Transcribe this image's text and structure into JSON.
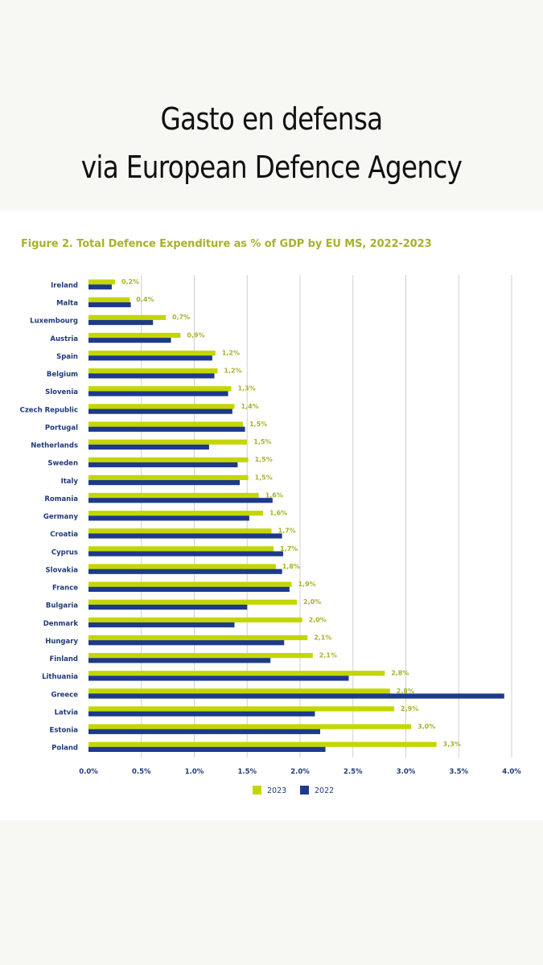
{
  "post": {
    "title_line1": "Gasto en defensa",
    "title_line2": "via European Defence Agency"
  },
  "colors": {
    "background": "#f7f7f3",
    "panel": "#ffffff",
    "series_2023": "#c3d600",
    "series_2022": "#1d3a8a",
    "label_2023": "#a7b22a",
    "category_text": "#1f3a7a",
    "grid": "#d0d0d0"
  },
  "chart_data": {
    "type": "bar",
    "orientation": "horizontal",
    "title": "Figure 2. Total Defence Expenditure as % of GDP by EU MS, 2022-2023",
    "xlabel": "",
    "ylabel": "",
    "xlim": [
      0,
      4.0
    ],
    "x_ticks": [
      "0.0%",
      "0.5%",
      "1.0%",
      "1.5%",
      "2.0%",
      "2.5%",
      "3.0%",
      "3.5%",
      "4.0%"
    ],
    "grid": "vertical",
    "legend_position": "bottom",
    "categories": [
      "Ireland",
      "Malta",
      "Luxembourg",
      "Austria",
      "Spain",
      "Belgium",
      "Slovenia",
      "Czech Republic",
      "Portugal",
      "Netherlands",
      "Sweden",
      "Italy",
      "Romania",
      "Germany",
      "Croatia",
      "Cyprus",
      "Slovakia",
      "France",
      "Bulgaria",
      "Denmark",
      "Hungary",
      "Finland",
      "Lithuania",
      "Greece",
      "Latvia",
      "Estonia",
      "Poland"
    ],
    "series": [
      {
        "name": "2023",
        "values": [
          0.25,
          0.39,
          0.73,
          0.87,
          1.2,
          1.22,
          1.35,
          1.38,
          1.46,
          1.5,
          1.51,
          1.51,
          1.61,
          1.65,
          1.73,
          1.75,
          1.77,
          1.92,
          1.97,
          2.02,
          2.07,
          2.12,
          2.8,
          2.85,
          2.89,
          3.05,
          3.29
        ],
        "labels": [
          "0,2%",
          "0,4%",
          "0,7%",
          "0,9%",
          "1,2%",
          "1,2%",
          "1,3%",
          "1,4%",
          "1,5%",
          "1,5%",
          "1,5%",
          "1,5%",
          "1,6%",
          "1,6%",
          "1,7%",
          "1,7%",
          "1,8%",
          "1,9%",
          "2,0%",
          "2,0%",
          "2,1%",
          "2,1%",
          "2,8%",
          "2,8%",
          "2,9%",
          "3,0%",
          "3,3%"
        ]
      },
      {
        "name": "2022",
        "values": [
          0.22,
          0.4,
          0.61,
          0.78,
          1.17,
          1.19,
          1.32,
          1.36,
          1.48,
          1.14,
          1.41,
          1.43,
          1.74,
          1.52,
          1.83,
          1.84,
          1.83,
          1.9,
          1.5,
          1.38,
          1.85,
          1.72,
          2.46,
          3.93,
          2.14,
          2.19,
          2.24
        ]
      }
    ]
  }
}
